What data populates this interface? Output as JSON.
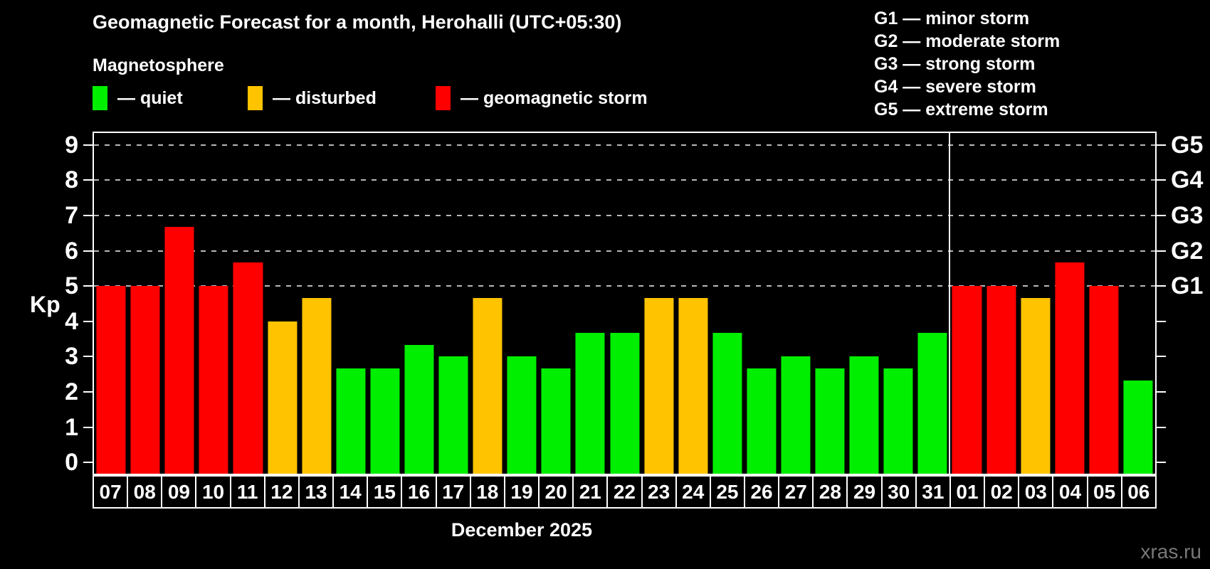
{
  "title": "Geomagnetic Forecast for a month, Herohalli (UTC+05:30)",
  "subtitle": "Magnetosphere",
  "legend": {
    "quiet": "— quiet",
    "disturbed": "— disturbed",
    "storm": "— geomagnetic storm"
  },
  "storm_scale": [
    "G1 — minor storm",
    "G2 — moderate storm",
    "G3 — strong storm",
    "G4 — severe storm",
    "G5 — extreme storm"
  ],
  "colors": {
    "quiet": "#00ee00",
    "disturbed": "#ffc300",
    "storm": "#ff0000",
    "background": "#000000",
    "text": "#ffffff",
    "gridline": "#b8b8b8",
    "watermark": "#787878"
  },
  "month_label": "December 2025",
  "watermark": "xras.ru",
  "chart_data": {
    "type": "bar",
    "title": "Geomagnetic Forecast for a month, Herohalli (UTC+05:30)",
    "xlabel": "December 2025",
    "ylabel": "Kp",
    "ylim": [
      0,
      9
    ],
    "y_ticks": [
      0,
      1,
      2,
      3,
      4,
      5,
      6,
      7,
      8,
      9
    ],
    "grid": "dashed horizontal lines at Kp 5-9 (G1-G5 levels)",
    "legend_position": "top",
    "g_scale": [
      {
        "code": "G1",
        "kp": 5
      },
      {
        "code": "G2",
        "kp": 6
      },
      {
        "code": "G3",
        "kp": 7
      },
      {
        "code": "G4",
        "kp": 8
      },
      {
        "code": "G5",
        "kp": 9
      }
    ],
    "categories": [
      "07",
      "08",
      "09",
      "10",
      "11",
      "12",
      "13",
      "14",
      "15",
      "16",
      "17",
      "18",
      "19",
      "20",
      "21",
      "22",
      "23",
      "24",
      "25",
      "26",
      "27",
      "28",
      "29",
      "30",
      "31",
      "01",
      "02",
      "03",
      "04",
      "05",
      "06"
    ],
    "values": [
      5.0,
      5.0,
      6.67,
      5.0,
      5.67,
      4.0,
      4.67,
      2.67,
      2.67,
      3.33,
      3.0,
      4.67,
      3.0,
      2.67,
      3.67,
      3.67,
      4.67,
      4.67,
      3.67,
      2.67,
      3.0,
      2.67,
      3.0,
      2.67,
      3.67,
      5.0,
      5.0,
      4.67,
      5.67,
      5.0,
      2.33
    ],
    "statuses": [
      "storm",
      "storm",
      "storm",
      "storm",
      "storm",
      "disturbed",
      "disturbed",
      "quiet",
      "quiet",
      "quiet",
      "quiet",
      "disturbed",
      "quiet",
      "quiet",
      "quiet",
      "quiet",
      "disturbed",
      "disturbed",
      "quiet",
      "quiet",
      "quiet",
      "quiet",
      "quiet",
      "quiet",
      "quiet",
      "storm",
      "storm",
      "disturbed",
      "storm",
      "storm",
      "quiet"
    ],
    "month_separator_after": 25
  }
}
